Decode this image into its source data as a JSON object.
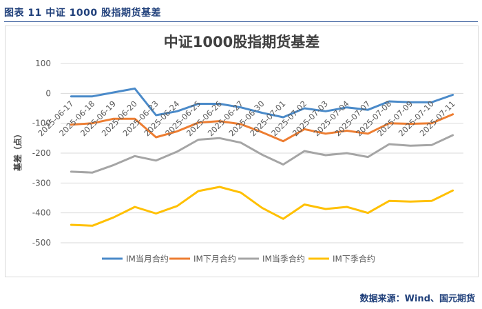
{
  "figure_caption": "图表 11  中证 1000 股指期货基差",
  "source_note": "数据来源：Wind、国元期货",
  "chart_data": {
    "type": "line",
    "title": "中证1000股指期货基差",
    "ylabel": "基差（点）",
    "xlabel": "",
    "ylim": [
      -500,
      100
    ],
    "yticks": [
      100,
      0,
      -100,
      -200,
      -300,
      -400,
      -500
    ],
    "grid": true,
    "legend_position": "bottom",
    "categories": [
      "2025-06-17",
      "2025-06-18",
      "2025-06-19",
      "2025-06-20",
      "2025-06-23",
      "2025-06-24",
      "2025-06-25",
      "2025-06-26",
      "2025-06-27",
      "2025-06-30",
      "2025-07-01",
      "2025-07-02",
      "2025-07-03",
      "2025-07-04",
      "2025-07-07",
      "2025-07-08",
      "2025-07-09",
      "2025-07-10",
      "2025-07-11"
    ],
    "series": [
      {
        "name": "IM当月合约",
        "color": "#4a8ac9",
        "values": [
          -10,
          -10,
          3,
          16,
          -73,
          -60,
          -35,
          -35,
          -47,
          -65,
          -80,
          -50,
          -60,
          -47,
          -55,
          -27,
          -30,
          -30,
          -5
        ]
      },
      {
        "name": "IM下月合约",
        "color": "#ed7d31",
        "values": [
          -105,
          -100,
          -85,
          -85,
          -147,
          -127,
          -98,
          -93,
          -103,
          -130,
          -160,
          -120,
          -135,
          -125,
          -135,
          -100,
          -102,
          -100,
          -70
        ]
      },
      {
        "name": "IM当季合约",
        "color": "#a5a5a5",
        "values": [
          -262,
          -265,
          -240,
          -210,
          -225,
          -195,
          -155,
          -150,
          -165,
          -205,
          -238,
          -193,
          -207,
          -200,
          -213,
          -170,
          -175,
          -173,
          -140
        ]
      },
      {
        "name": "IM下季合约",
        "color": "#ffc000",
        "values": [
          -440,
          -443,
          -415,
          -380,
          -402,
          -377,
          -327,
          -313,
          -332,
          -383,
          -420,
          -372,
          -387,
          -380,
          -400,
          -360,
          -362,
          -360,
          -325
        ]
      }
    ]
  }
}
